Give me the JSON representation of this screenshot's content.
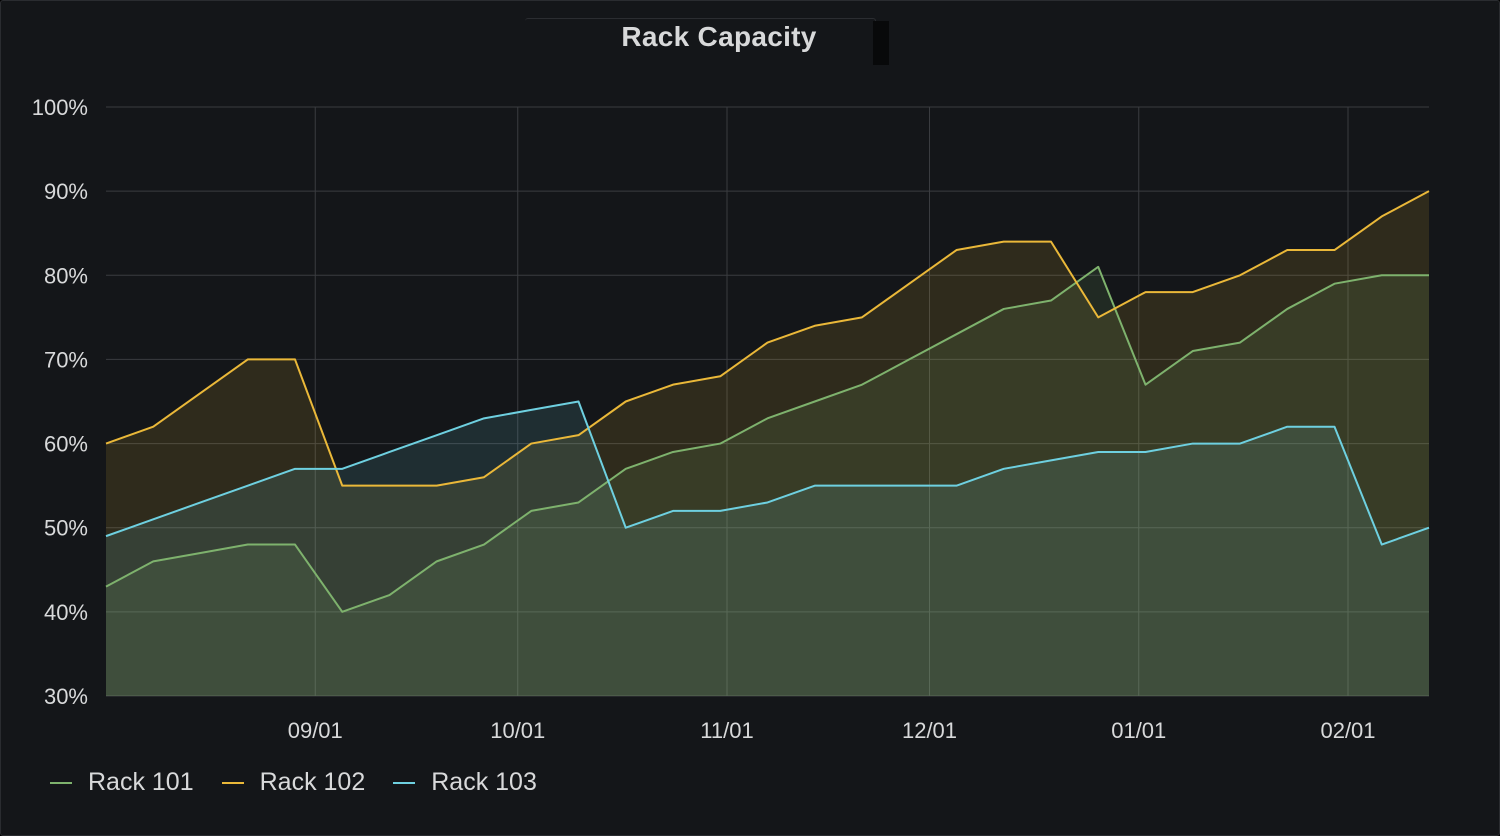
{
  "panel": {
    "title": "Rack Capacity"
  },
  "colors": {
    "Rack 101": "#7eb26d",
    "Rack 102": "#eab839",
    "Rack 103": "#6ed0e0",
    "background": "#141619",
    "grid": "#3a3c40",
    "text": "#d8d9da"
  },
  "chart_data": {
    "type": "area",
    "title": "Rack Capacity",
    "xlabel": "",
    "ylabel": "",
    "ylim": [
      30,
      100
    ],
    "xlim": [
      "2018-08-01",
      "2019-02-13"
    ],
    "y_tick_labels": [
      "30%",
      "40%",
      "50%",
      "60%",
      "70%",
      "80%",
      "90%",
      "100%"
    ],
    "y_ticks": [
      30,
      40,
      50,
      60,
      70,
      80,
      90,
      100
    ],
    "x_tick_labels": [
      "09/01",
      "10/01",
      "11/01",
      "12/01",
      "01/01",
      "02/01"
    ],
    "x_ticks": [
      "2018-09-01",
      "2018-10-01",
      "2018-11-01",
      "2018-12-01",
      "2019-01-01",
      "2019-02-01"
    ],
    "grid": true,
    "legend": "bottom-left",
    "x": [
      "2018-08-01",
      "2018-08-08",
      "2018-08-15",
      "2018-08-22",
      "2018-08-29",
      "2018-09-05",
      "2018-09-12",
      "2018-09-19",
      "2018-09-26",
      "2018-10-03",
      "2018-10-10",
      "2018-10-17",
      "2018-10-24",
      "2018-10-31",
      "2018-11-07",
      "2018-11-14",
      "2018-11-21",
      "2018-11-28",
      "2018-12-05",
      "2018-12-12",
      "2018-12-19",
      "2018-12-26",
      "2019-01-02",
      "2019-01-09",
      "2019-01-16",
      "2019-01-23",
      "2019-01-30",
      "2019-02-06",
      "2019-02-13"
    ],
    "series": [
      {
        "name": "Rack 101",
        "values": [
          43,
          46,
          47,
          48,
          48,
          40,
          42,
          46,
          48,
          52,
          53,
          57,
          59,
          60,
          63,
          65,
          67,
          70,
          73,
          76,
          77,
          81,
          67,
          71,
          72,
          76,
          79,
          80,
          80
        ]
      },
      {
        "name": "Rack 102",
        "values": [
          60,
          62,
          66,
          70,
          70,
          55,
          55,
          55,
          56,
          60,
          61,
          65,
          67,
          68,
          72,
          74,
          75,
          79,
          83,
          84,
          84,
          75,
          78,
          78,
          80,
          83,
          83,
          87,
          90
        ]
      },
      {
        "name": "Rack 103",
        "values": [
          49,
          51,
          53,
          55,
          57,
          57,
          59,
          61,
          63,
          64,
          65,
          50,
          52,
          52,
          53,
          55,
          55,
          55,
          55,
          57,
          58,
          59,
          59,
          60,
          60,
          62,
          62,
          48,
          50
        ]
      }
    ]
  },
  "legend": {
    "items": [
      "Rack 101",
      "Rack 102",
      "Rack 103"
    ]
  }
}
